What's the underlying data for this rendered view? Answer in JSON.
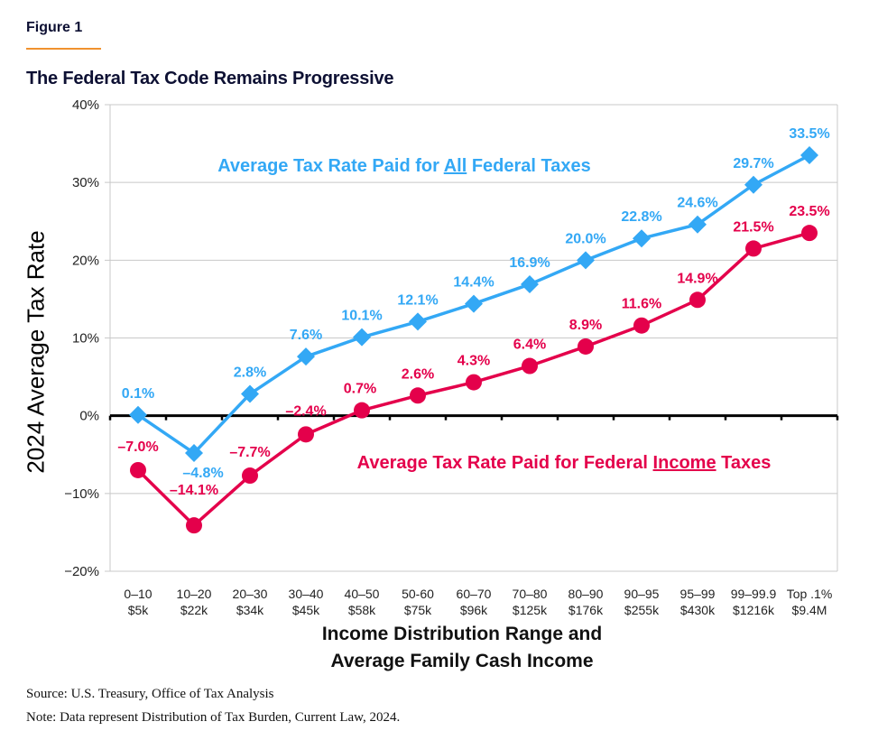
{
  "figure_label": "Figure 1",
  "colors": {
    "all_taxes": "#33a8f5",
    "income_taxes": "#e4004b",
    "title": "#0d1033",
    "accent_rule": "#f0922e",
    "grid": "#c8c8c8"
  },
  "footer": {
    "source": "Source: U.S. Treasury, Office of Tax Analysis",
    "note": "Note: Data represent Distribution of Tax Burden, Current Law, 2024."
  },
  "chart_data": {
    "type": "line",
    "title": "The Federal Tax Code Remains Progressive",
    "ylabel": "2024 Average Tax Rate",
    "xlabel_lines": [
      "Income Distribution Range and",
      "Average Family Cash Income"
    ],
    "ylim": [
      -20,
      40
    ],
    "yticks": [
      40,
      30,
      20,
      10,
      0,
      -10,
      -20
    ],
    "ytick_labels": [
      "40%",
      "30%",
      "20%",
      "10%",
      "0%",
      "−10%",
      "−20%"
    ],
    "grid": true,
    "categories": [
      {
        "range": "0–10",
        "income": "$5k"
      },
      {
        "range": "10–20",
        "income": "$22k"
      },
      {
        "range": "20–30",
        "income": "$34k"
      },
      {
        "range": "30–40",
        "income": "$45k"
      },
      {
        "range": "40–50",
        "income": "$58k"
      },
      {
        "range": "50-60",
        "income": "$75k"
      },
      {
        "range": "60–70",
        "income": "$96k"
      },
      {
        "range": "70–80",
        "income": "$125k"
      },
      {
        "range": "80–90",
        "income": "$176k"
      },
      {
        "range": "90–95",
        "income": "$255k"
      },
      {
        "range": "95–99",
        "income": "$430k"
      },
      {
        "range": "99–99.9",
        "income": "$1216k"
      },
      {
        "range": "Top .1%",
        "income": "$9.4M"
      }
    ],
    "series": [
      {
        "name": "Average Tax Rate Paid for All Federal Taxes",
        "annotation_parts": [
          "Average Tax Rate Paid for ",
          "All",
          " Federal Taxes"
        ],
        "marker": "diamond",
        "color": "#33a8f5",
        "values": [
          0.1,
          -4.8,
          2.8,
          7.6,
          10.1,
          12.1,
          14.4,
          16.9,
          20.0,
          22.8,
          24.6,
          29.7,
          33.5
        ],
        "labels": [
          "0.1%",
          "–4.8%",
          "2.8%",
          "7.6%",
          "10.1%",
          "12.1%",
          "14.4%",
          "16.9%",
          "20.0%",
          "22.8%",
          "24.6%",
          "29.7%",
          "33.5%"
        ]
      },
      {
        "name": "Average Tax Rate Paid for Federal Income Taxes",
        "annotation_parts": [
          "Average Tax Rate Paid for Federal ",
          "Income",
          " Taxes"
        ],
        "marker": "circle",
        "color": "#e4004b",
        "values": [
          -7.0,
          -14.1,
          -7.7,
          -2.4,
          0.7,
          2.6,
          4.3,
          6.4,
          8.9,
          11.6,
          14.9,
          21.5,
          23.5
        ],
        "labels": [
          "–7.0%",
          "–14.1%",
          "–7.7%",
          "–2.4%",
          "0.7%",
          "2.6%",
          "4.3%",
          "6.4%",
          "8.9%",
          "11.6%",
          "14.9%",
          "21.5%",
          "23.5%"
        ]
      }
    ]
  }
}
